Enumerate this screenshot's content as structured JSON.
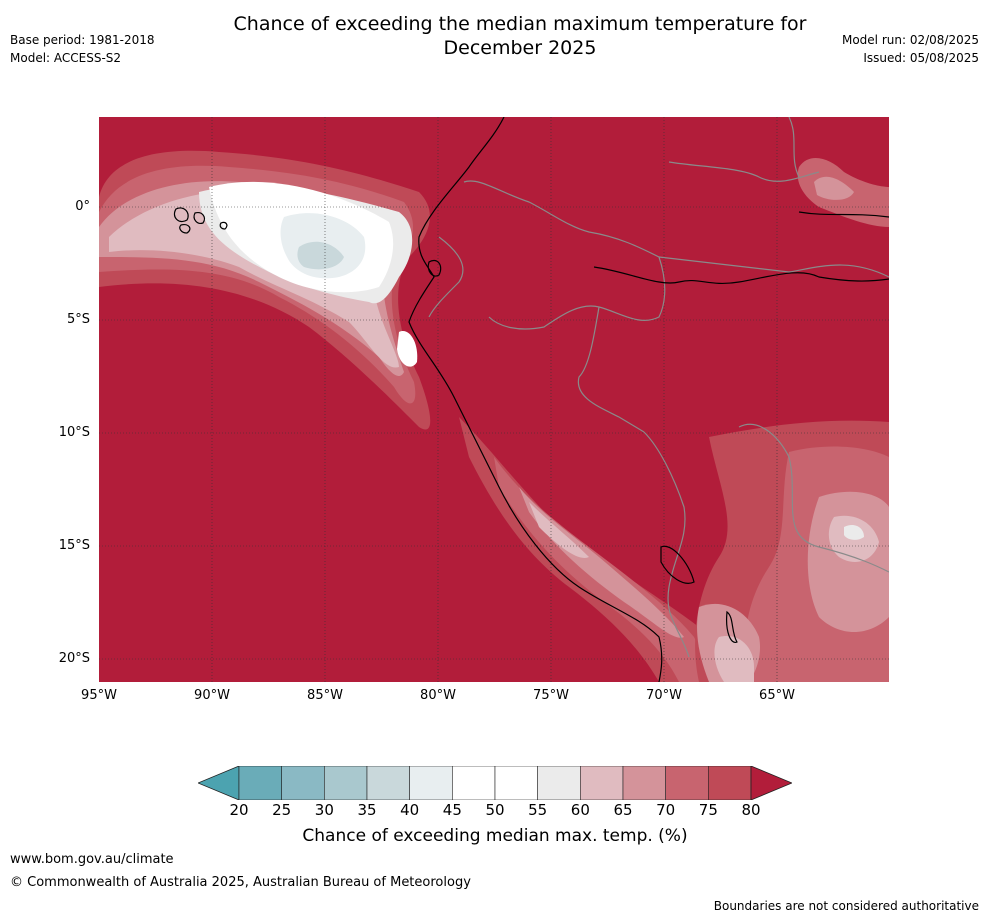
{
  "title_line1": "Chance of exceeding the median maximum temperature for",
  "title_line2": "December 2025",
  "meta_left": {
    "base_period": "Base period: 1981-2018",
    "model": "Model: ACCESS-S2"
  },
  "meta_right": {
    "model_run": "Model run: 02/08/2025",
    "issued": "Issued: 05/08/2025"
  },
  "map": {
    "lat_range": [
      -21,
      4
    ],
    "lon_range": [
      -95,
      -60
    ],
    "lat_ticks": [
      {
        "value": 0,
        "label": "0°"
      },
      {
        "value": -5,
        "label": "5°S"
      },
      {
        "value": -10,
        "label": "10°S"
      },
      {
        "value": -15,
        "label": "15°S"
      },
      {
        "value": -20,
        "label": "20°S"
      }
    ],
    "lon_ticks": [
      {
        "value": -95,
        "label": "95°W"
      },
      {
        "value": -90,
        "label": "90°W"
      },
      {
        "value": -85,
        "label": "85°W"
      },
      {
        "value": -80,
        "label": "80°W"
      },
      {
        "value": -75,
        "label": "75°W"
      },
      {
        "value": -70,
        "label": "70°W"
      },
      {
        "value": -65,
        "label": "65°W"
      }
    ],
    "background_color": "#b21d3a"
  },
  "colorbar": {
    "ticks": [
      "20",
      "25",
      "30",
      "35",
      "40",
      "45",
      "50",
      "55",
      "60",
      "65",
      "70",
      "75",
      "80"
    ],
    "colors": [
      "#6aacb8",
      "#8ab9c4",
      "#a9c8ce",
      "#c9d8db",
      "#e8eef0",
      "#ffffff",
      "#ffffff",
      "#ebebeb",
      "#e0bbc0",
      "#d4939a",
      "#c8646f",
      "#bf4a57"
    ],
    "low_extend_color": "#4ca3b0",
    "high_extend_color": "#b21d3a",
    "label": "Chance of exceeding median max. temp. (%)"
  },
  "footer": {
    "url": "www.bom.gov.au/climate",
    "copyright": "© Commonwealth of Australia 2025, Australian Bureau of Meteorology",
    "note": "Boundaries are not considered authoritative"
  }
}
